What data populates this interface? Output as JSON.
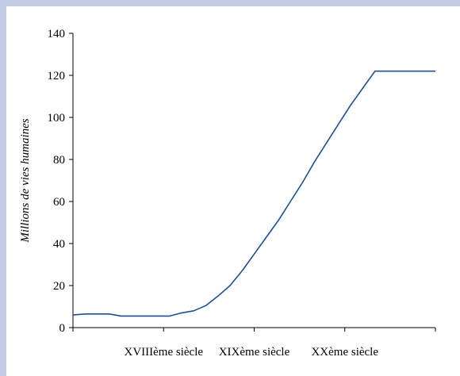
{
  "colors": {
    "frame": "#c5cde6",
    "line": "#1f4e96",
    "axis": "#000000"
  },
  "chart_data": {
    "type": "line",
    "title": "",
    "xlabel": "",
    "ylabel": "Millions de vies humaines",
    "ylim": [
      0,
      140
    ],
    "yticks": [
      0,
      20,
      40,
      60,
      80,
      100,
      120,
      140
    ],
    "xlim": [
      1700,
      2000
    ],
    "category_labels": [
      "XVIIIème siècle",
      "XIXème siècle",
      "XXème siècle"
    ],
    "grid": false,
    "legend": "none",
    "series": [
      {
        "x": [
          1700,
          1710,
          1720,
          1730,
          1740,
          1750,
          1760,
          1770,
          1780,
          1790,
          1800,
          1810,
          1820,
          1830,
          1840,
          1850,
          1860,
          1870,
          1880,
          1890,
          1900,
          1910,
          1920,
          1930,
          1940,
          1950,
          1960,
          1970,
          1980,
          1990,
          2000
        ],
        "y": [
          6,
          6.5,
          6.5,
          6.5,
          5.5,
          5.5,
          5.5,
          5.5,
          5.5,
          7,
          8,
          10.5,
          15,
          20,
          27,
          35,
          43,
          51,
          60,
          69,
          79,
          88,
          97,
          106,
          114,
          122,
          122,
          122,
          122,
          122,
          122
        ]
      }
    ]
  }
}
